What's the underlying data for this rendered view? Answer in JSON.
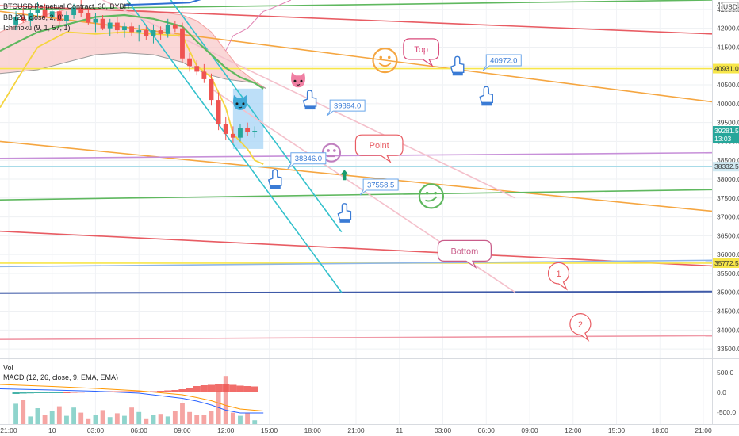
{
  "chart_data": {
    "type": "candlestick",
    "title": "BTCUSD Perpetual Contract, 30, BYBIT",
    "indicators": [
      "BB (20, close, 2, 0)",
      "Ichimoku (9, 1, 57, 1)"
    ],
    "lower_pane": {
      "label": "Vol",
      "indicator": "MACD (12, 26, close, 9, EMA, EMA)"
    },
    "currency": "USD",
    "price_axis": {
      "ticks": [
        "42500.0",
        "42000.0",
        "41500.0",
        "41000.0",
        "40500.0",
        "40000.0",
        "39500.0",
        "39000.0",
        "38500.0",
        "38000.0",
        "37500.0",
        "37000.0",
        "36500.0",
        "36000.0",
        "35500.0",
        "35000.0",
        "34500.0",
        "34000.0",
        "33500.0"
      ],
      "range": [
        33250,
        42750
      ],
      "top_label": "43",
      "badges": [
        {
          "text": "40931.0",
          "price": 40931,
          "color": "#f7e64a",
          "text_color": "#333333"
        },
        {
          "text": "39281.5",
          "sub": "13:03",
          "price": 39281.5,
          "color": "#26a69a",
          "text_color": "#ffffff"
        },
        {
          "text": "38332.5",
          "price": 38332.5,
          "color": "#cfe9f2",
          "text_color": "#333333"
        },
        {
          "text": "35772.5",
          "price": 35772.5,
          "color": "#f7e64a",
          "text_color": "#333333"
        }
      ]
    },
    "macd_axis": {
      "ticks": [
        "500.0",
        "0.0",
        "-500.0"
      ],
      "range": [
        -800,
        800
      ]
    },
    "time_axis": {
      "ticks": [
        "21:00",
        "10",
        "03:00",
        "06:00",
        "09:00",
        "12:00",
        "15:00",
        "18:00",
        "21:00",
        "11",
        "03:00",
        "06:00",
        "09:00",
        "12:00",
        "15:00",
        "18:00",
        "21:00"
      ],
      "hours": [
        0,
        3,
        6,
        9,
        12,
        15,
        18,
        21,
        24,
        27,
        30,
        33,
        36,
        39,
        42,
        45,
        48
      ],
      "range": [
        -0.6,
        48.6
      ]
    },
    "candles": [
      {
        "t": 0.5,
        "o": 42100,
        "h": 42450,
        "l": 41950,
        "c": 42300
      },
      {
        "t": 1.0,
        "o": 42300,
        "h": 42550,
        "l": 42150,
        "c": 42200
      },
      {
        "t": 1.5,
        "o": 42200,
        "h": 42500,
        "l": 42050,
        "c": 42400
      },
      {
        "t": 2.0,
        "o": 42400,
        "h": 42700,
        "l": 42300,
        "c": 42500
      },
      {
        "t": 2.5,
        "o": 42500,
        "h": 42650,
        "l": 42250,
        "c": 42300
      },
      {
        "t": 3.0,
        "o": 42300,
        "h": 42600,
        "l": 42200,
        "c": 42450
      },
      {
        "t": 3.5,
        "o": 42450,
        "h": 42550,
        "l": 42100,
        "c": 42200
      },
      {
        "t": 4.0,
        "o": 42200,
        "h": 42450,
        "l": 42050,
        "c": 42350
      },
      {
        "t": 4.5,
        "o": 42350,
        "h": 42650,
        "l": 42250,
        "c": 42550
      },
      {
        "t": 5.0,
        "o": 42550,
        "h": 42750,
        "l": 42300,
        "c": 42400
      },
      {
        "t": 5.5,
        "o": 42400,
        "h": 42550,
        "l": 42100,
        "c": 42150
      },
      {
        "t": 6.0,
        "o": 42150,
        "h": 42400,
        "l": 41900,
        "c": 42250
      },
      {
        "t": 6.5,
        "o": 42250,
        "h": 42350,
        "l": 41950,
        "c": 42000
      },
      {
        "t": 7.0,
        "o": 42000,
        "h": 42250,
        "l": 41800,
        "c": 42150
      },
      {
        "t": 7.5,
        "o": 42150,
        "h": 42300,
        "l": 41850,
        "c": 41950
      },
      {
        "t": 8.0,
        "o": 41950,
        "h": 42150,
        "l": 41750,
        "c": 42050
      },
      {
        "t": 8.5,
        "o": 42050,
        "h": 42150,
        "l": 41800,
        "c": 41900
      },
      {
        "t": 9.0,
        "o": 41900,
        "h": 42100,
        "l": 41650,
        "c": 41950
      },
      {
        "t": 9.5,
        "o": 41950,
        "h": 42050,
        "l": 41700,
        "c": 41800
      },
      {
        "t": 10.0,
        "o": 41800,
        "h": 42100,
        "l": 41600,
        "c": 41950
      },
      {
        "t": 10.5,
        "o": 41950,
        "h": 42050,
        "l": 41700,
        "c": 41850
      },
      {
        "t": 11.0,
        "o": 41850,
        "h": 42250,
        "l": 41750,
        "c": 42100
      },
      {
        "t": 11.5,
        "o": 42100,
        "h": 42200,
        "l": 41900,
        "c": 42000
      },
      {
        "t": 12.0,
        "o": 42000,
        "h": 42150,
        "l": 41100,
        "c": 41200
      },
      {
        "t": 12.5,
        "o": 41200,
        "h": 41350,
        "l": 40850,
        "c": 41000
      },
      {
        "t": 13.0,
        "o": 41000,
        "h": 41150,
        "l": 40750,
        "c": 40850
      },
      {
        "t": 13.5,
        "o": 40850,
        "h": 41050,
        "l": 40550,
        "c": 40650
      },
      {
        "t": 14.0,
        "o": 40650,
        "h": 40800,
        "l": 39950,
        "c": 40100
      },
      {
        "t": 14.5,
        "o": 40100,
        "h": 40300,
        "l": 39300,
        "c": 39450
      },
      {
        "t": 15.0,
        "o": 39450,
        "h": 39650,
        "l": 39050,
        "c": 39200
      },
      {
        "t": 15.5,
        "o": 39200,
        "h": 39400,
        "l": 38950,
        "c": 39100
      },
      {
        "t": 16.0,
        "o": 39100,
        "h": 39450,
        "l": 39000,
        "c": 39350
      },
      {
        "t": 16.5,
        "o": 39350,
        "h": 39500,
        "l": 39150,
        "c": 39250
      },
      {
        "t": 17.0,
        "o": 39250,
        "h": 39400,
        "l": 39100,
        "c": 39281.5
      }
    ],
    "trend_lines": [
      {
        "name": "green-line-top",
        "color": "#5fb85f",
        "p1": [
          -0.6,
          42500
        ],
        "p2": [
          48.6,
          42750
        ]
      },
      {
        "name": "red-line-top",
        "color": "#e85c63",
        "p1": [
          -0.6,
          42600
        ],
        "p2": [
          48.6,
          41850
        ]
      },
      {
        "name": "orange-line-top",
        "color": "#f5a641",
        "p1": [
          -0.6,
          42450
        ],
        "p2": [
          48.6,
          40050
        ]
      },
      {
        "name": "yellow-line-40931",
        "color": "#f7e64a",
        "p1": [
          -0.6,
          40931
        ],
        "p2": [
          48.6,
          40931
        ]
      },
      {
        "name": "orange-line-mid",
        "color": "#f5a641",
        "p1": [
          -0.6,
          39000
        ],
        "p2": [
          48.6,
          37150
        ]
      },
      {
        "name": "purple-line",
        "color": "#c790d9",
        "p1": [
          -0.6,
          38550
        ],
        "p2": [
          48.6,
          38700
        ]
      },
      {
        "name": "cyan-line-38332",
        "color": "#a8dbe8",
        "p1": [
          -0.6,
          38332.5
        ],
        "p2": [
          48.6,
          38332.5
        ]
      },
      {
        "name": "green-line-mid",
        "color": "#5fb85f",
        "p1": [
          -0.6,
          37450
        ],
        "p2": [
          48.6,
          37720
        ]
      },
      {
        "name": "red-line-bottom",
        "color": "#e85c63",
        "p1": [
          -0.6,
          36620
        ],
        "p2": [
          48.6,
          35700
        ]
      },
      {
        "name": "yellow-line-35772",
        "color": "#f7e64a",
        "p1": [
          -0.6,
          35772.5
        ],
        "p2": [
          48.6,
          35772.5
        ]
      },
      {
        "name": "blue-line-35700",
        "color": "#8fb6e8",
        "p1": [
          -0.6,
          35680
        ],
        "p2": [
          48.6,
          35850
        ]
      },
      {
        "name": "navy-line-35000",
        "color": "#3f5aa8",
        "p1": [
          -0.6,
          34980
        ],
        "p2": [
          48.6,
          35020
        ]
      },
      {
        "name": "pink-line-33800",
        "color": "#f09aa8",
        "p1": [
          -0.6,
          33750
        ],
        "p2": [
          48.6,
          33850
        ]
      },
      {
        "name": "cyan-channel-left",
        "color": "#33c1cc",
        "p1": [
          8.2,
          42750
        ],
        "p2": [
          23.0,
          35000
        ]
      },
      {
        "name": "cyan-channel-right",
        "color": "#33c1cc",
        "p1": [
          11.2,
          42750
        ],
        "p2": [
          23.0,
          36600
        ]
      },
      {
        "name": "pink-line-upper",
        "color": "#f4c0cb",
        "p1": [
          6.5,
          42750
        ],
        "p2": [
          35.0,
          37500
        ]
      },
      {
        "name": "pink-line-lower",
        "color": "#f4c0cb",
        "p1": [
          14.0,
          40400
        ],
        "p2": [
          35.0,
          35000
        ]
      }
    ],
    "ichimoku_cloud": {
      "upper": [
        [
          -0.6,
          41900
        ],
        [
          2,
          42300
        ],
        [
          4,
          42500
        ],
        [
          6,
          42550
        ],
        [
          8,
          42500
        ],
        [
          10,
          42450
        ],
        [
          12,
          42350
        ],
        [
          13,
          42200
        ],
        [
          14,
          41900
        ],
        [
          15,
          41400
        ],
        [
          16,
          40900
        ],
        [
          17,
          40600
        ],
        [
          17.8,
          40400
        ]
      ],
      "lower": [
        [
          -0.6,
          40800
        ],
        [
          2,
          40900
        ],
        [
          4,
          41100
        ],
        [
          6,
          41300
        ],
        [
          8,
          41350
        ],
        [
          10,
          41300
        ],
        [
          12,
          41100
        ],
        [
          13,
          40900
        ],
        [
          14,
          40750
        ],
        [
          15,
          40650
        ],
        [
          16,
          40600
        ],
        [
          17,
          40550
        ],
        [
          17.8,
          40400
        ]
      ]
    },
    "bb_upper": [
      [
        15.0,
        41400
      ],
      [
        15.5,
        41800
      ],
      [
        16.5,
        42000
      ],
      [
        17.6,
        42450
      ],
      [
        18.0,
        42500
      ],
      [
        19.5,
        42750
      ]
    ],
    "ema_yellow": [
      [
        -0.6,
        39900
      ],
      [
        1,
        40900
      ],
      [
        2,
        41500
      ],
      [
        4,
        41900
      ],
      [
        6,
        41850
      ],
      [
        8,
        41900
      ],
      [
        10,
        41850
      ],
      [
        12,
        41800
      ],
      [
        13,
        41000
      ],
      [
        14,
        40700
      ],
      [
        15,
        39900
      ],
      [
        15.5,
        39200
      ],
      [
        16.5,
        38800
      ],
      [
        17,
        38500
      ],
      [
        17.6,
        38400
      ]
    ],
    "green_ma": [
      [
        -0.6,
        41400
      ],
      [
        2,
        41900
      ],
      [
        4,
        42100
      ],
      [
        6,
        42300
      ],
      [
        8,
        42350
      ],
      [
        10,
        42250
      ],
      [
        12,
        42050
      ],
      [
        13,
        41650
      ],
      [
        14,
        41300
      ],
      [
        15,
        40950
      ],
      [
        16,
        40700
      ],
      [
        17,
        40550
      ],
      [
        17.6,
        40400
      ]
    ],
    "blue_box": {
      "t1": 15.5,
      "t2": 17.6,
      "p1": 40400,
      "p2": 38800
    },
    "annotations": [
      {
        "type": "bubble",
        "text": "Top",
        "t": 28.5,
        "p": 41450,
        "color": "#d9497a"
      },
      {
        "type": "bubble",
        "text": "Point",
        "t": 25.6,
        "p": 38900,
        "color": "#e85c63"
      },
      {
        "type": "bubble",
        "text": "Bottom",
        "t": 31.5,
        "p": 36100,
        "color": "#c95d8a"
      },
      {
        "type": "bubble-circle",
        "text": "1",
        "t": 38.0,
        "p": 35500,
        "color": "#e85c63"
      },
      {
        "type": "bubble-circle",
        "text": "2",
        "t": 39.5,
        "p": 34150,
        "color": "#e85c63"
      },
      {
        "type": "price-note",
        "text": "40972.0",
        "t": 33.0,
        "p": 41300,
        "color": "#6aa6ea"
      },
      {
        "type": "price-note",
        "text": "39894.0",
        "t": 22.2,
        "p": 40100,
        "color": "#6aa6ea"
      },
      {
        "type": "price-note",
        "text": "38346.0",
        "t": 19.5,
        "p": 38700,
        "color": "#6aa6ea"
      },
      {
        "type": "price-note",
        "text": "37558.5",
        "t": 24.5,
        "p": 38000,
        "color": "#6aa6ea"
      }
    ],
    "emoji_marks": [
      {
        "name": "smile-face-icon",
        "t": 26.0,
        "p": 41150,
        "color": "#f5a641",
        "face": "smile"
      },
      {
        "name": "neutral-face-icon",
        "t": 22.3,
        "p": 38700,
        "color": "#c07fbf",
        "face": "neutral"
      },
      {
        "name": "smirk-face-icon",
        "t": 29.2,
        "p": 37550,
        "color": "#5fb85f",
        "face": "smirk"
      },
      {
        "name": "cat-face-icon",
        "t": 20.0,
        "p": 40600,
        "color": "#f07fa3",
        "face": "cat"
      },
      {
        "name": "blue-cat-face-icon",
        "t": 16.0,
        "p": 40000,
        "color": "#3fa9d6",
        "face": "cat"
      }
    ],
    "hand_marks": [
      {
        "name": "hand-pointer-icon",
        "t": 31.0,
        "p": 41000
      },
      {
        "name": "hand-pointer-icon",
        "t": 33.0,
        "p": 40200
      },
      {
        "name": "hand-pointer-icon",
        "t": 20.8,
        "p": 40100
      },
      {
        "name": "hand-pointer-icon",
        "t": 18.4,
        "p": 38000
      },
      {
        "name": "hand-pointer-icon",
        "t": 23.2,
        "p": 37100
      }
    ],
    "arrow_mark": {
      "name": "up-arrow-icon",
      "t": 23.2,
      "p": 38100,
      "color": "#1a9b6d"
    },
    "volume": [
      320,
      380,
      120,
      250,
      150,
      200,
      280,
      130,
      260,
      180,
      90,
      150,
      220,
      110,
      170,
      130,
      260,
      190,
      90,
      140,
      160,
      120,
      210,
      330,
      190,
      150,
      140,
      210,
      520,
      760,
      180,
      130,
      170,
      60
    ],
    "macd_hist": [
      -40,
      -30,
      -25,
      -20,
      -15,
      -10,
      -5,
      0,
      10,
      15,
      20,
      25,
      30,
      30,
      30,
      30,
      30,
      30,
      20,
      30,
      40,
      50,
      60,
      80,
      120,
      160,
      180,
      190,
      200,
      200,
      190,
      170,
      160,
      150
    ],
    "macd_line": [
      [
        -0.6,
        90
      ],
      [
        3,
        60
      ],
      [
        6,
        30
      ],
      [
        9,
        -20
      ],
      [
        12,
        -150
      ],
      [
        13,
        -220
      ],
      [
        14,
        -320
      ],
      [
        15,
        -450
      ],
      [
        16,
        -520
      ],
      [
        17.6,
        -520
      ]
    ],
    "signal_line": [
      [
        -0.6,
        200
      ],
      [
        3,
        150
      ],
      [
        6,
        100
      ],
      [
        9,
        40
      ],
      [
        12,
        -60
      ],
      [
        13,
        -130
      ],
      [
        14,
        -210
      ],
      [
        15,
        -330
      ],
      [
        16,
        -420
      ],
      [
        17.6,
        -470
      ]
    ],
    "blue_indicator": [
      [
        8.0,
        42620
      ],
      [
        10.5,
        42650
      ],
      [
        12.5,
        42680
      ],
      [
        14.0,
        42850
      ],
      [
        15.5,
        42950
      ],
      [
        16.5,
        42920
      ],
      [
        17.8,
        42820
      ]
    ]
  }
}
